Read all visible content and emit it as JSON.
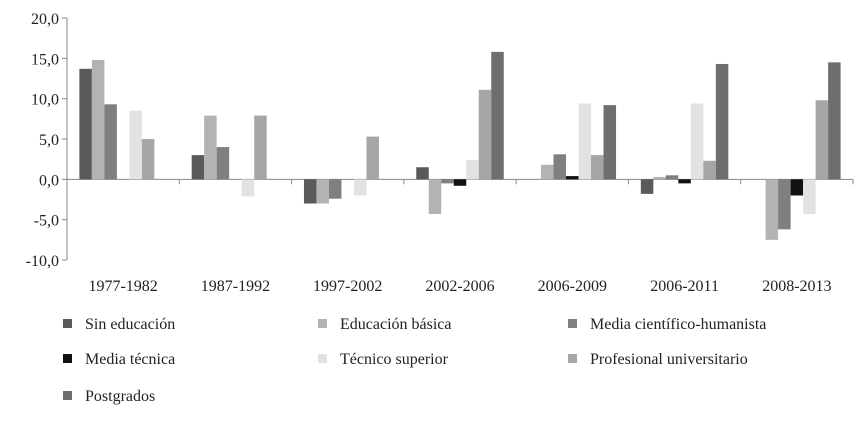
{
  "chart_data": {
    "type": "bar",
    "title": "",
    "xlabel": "",
    "ylabel": "",
    "ylim": [
      -10,
      20
    ],
    "y_ticks": [
      "20,0",
      "15,0",
      "10,0",
      "5,0",
      "0,0",
      "-5,0",
      "-10,0"
    ],
    "grid": false,
    "legend_position": "bottom",
    "categories": [
      "1977-1982",
      "1987-1992",
      "1997-2002",
      "2002-2006",
      "2006-2009",
      "2006-2011",
      "2008-2013"
    ],
    "series": [
      {
        "name": "Sin educación",
        "color": "#5a5a5a",
        "values": [
          13.7,
          3.0,
          -3.0,
          1.5,
          0.0,
          -1.8,
          0.0
        ]
      },
      {
        "name": "Educación básica",
        "color": "#b3b3b3",
        "values": [
          14.8,
          7.9,
          -3.0,
          -4.3,
          1.8,
          0.3,
          -7.5
        ]
      },
      {
        "name": "Media científico-humanista",
        "color": "#7f7f7f",
        "values": [
          9.3,
          4.0,
          -2.4,
          -0.5,
          3.1,
          0.5,
          -6.2
        ]
      },
      {
        "name": "Media técnica",
        "color": "#111111",
        "values": [
          0.0,
          0.0,
          0.0,
          -0.8,
          0.4,
          -0.5,
          -2.0
        ]
      },
      {
        "name": "Técnico superior",
        "color": "#e2e2e2",
        "values": [
          8.5,
          -2.1,
          -2.0,
          2.4,
          9.4,
          9.4,
          -4.3
        ]
      },
      {
        "name": "Profesional universitario",
        "color": "#a6a6a6",
        "values": [
          5.0,
          7.9,
          5.3,
          11.1,
          3.0,
          2.3,
          9.8
        ]
      },
      {
        "name": "Postgrados",
        "color": "#6e6e6e",
        "values": [
          0.0,
          0.0,
          0.0,
          15.8,
          9.2,
          14.3,
          14.5
        ]
      }
    ]
  }
}
